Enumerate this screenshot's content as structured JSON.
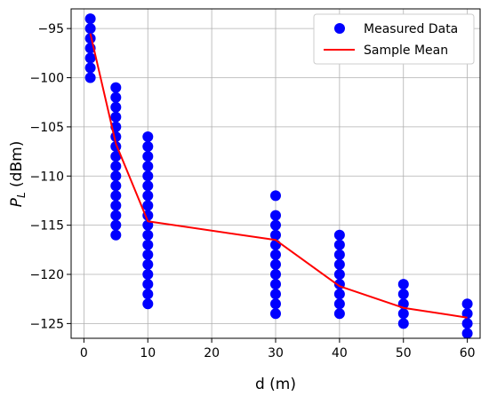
{
  "chart_data": {
    "type": "scatter",
    "title": "",
    "xlabel": "d (m)",
    "ylabel": {
      "base": "P",
      "sub": "L",
      "rest": " (dBm)"
    },
    "xlim": [
      -2,
      62
    ],
    "ylim": [
      -126.5,
      -93
    ],
    "xticks": [
      0,
      10,
      20,
      30,
      40,
      50,
      60
    ],
    "yticks": [
      -95,
      -100,
      -105,
      -110,
      -115,
      -120,
      -125
    ],
    "grid": true,
    "legend_position": "top-right",
    "series": [
      {
        "name": "Measured Data",
        "kind": "markers",
        "color": "#0000ff",
        "points": [
          [
            1,
            -94
          ],
          [
            1,
            -95
          ],
          [
            1,
            -96
          ],
          [
            1,
            -97
          ],
          [
            1,
            -98
          ],
          [
            1,
            -99
          ],
          [
            1,
            -100
          ],
          [
            5,
            -101
          ],
          [
            5,
            -102
          ],
          [
            5,
            -103
          ],
          [
            5,
            -104
          ],
          [
            5,
            -105
          ],
          [
            5,
            -106
          ],
          [
            5,
            -107
          ],
          [
            5,
            -108
          ],
          [
            5,
            -109
          ],
          [
            5,
            -110
          ],
          [
            5,
            -111
          ],
          [
            5,
            -112
          ],
          [
            5,
            -113
          ],
          [
            5,
            -114
          ],
          [
            5,
            -115
          ],
          [
            5,
            -116
          ],
          [
            10,
            -106
          ],
          [
            10,
            -107
          ],
          [
            10,
            -108
          ],
          [
            10,
            -109
          ],
          [
            10,
            -110
          ],
          [
            10,
            -111
          ],
          [
            10,
            -112
          ],
          [
            10,
            -113
          ],
          [
            10,
            -114
          ],
          [
            10,
            -115
          ],
          [
            10,
            -116
          ],
          [
            10,
            -117
          ],
          [
            10,
            -118
          ],
          [
            10,
            -119
          ],
          [
            10,
            -120
          ],
          [
            10,
            -121
          ],
          [
            10,
            -122
          ],
          [
            10,
            -123
          ],
          [
            30,
            -112
          ],
          [
            30,
            -114
          ],
          [
            30,
            -115
          ],
          [
            30,
            -116
          ],
          [
            30,
            -117
          ],
          [
            30,
            -118
          ],
          [
            30,
            -119
          ],
          [
            30,
            -120
          ],
          [
            30,
            -121
          ],
          [
            30,
            -122
          ],
          [
            30,
            -123
          ],
          [
            30,
            -124
          ],
          [
            40,
            -116
          ],
          [
            40,
            -117
          ],
          [
            40,
            -118
          ],
          [
            40,
            -119
          ],
          [
            40,
            -120
          ],
          [
            40,
            -121
          ],
          [
            40,
            -122
          ],
          [
            40,
            -123
          ],
          [
            40,
            -124
          ],
          [
            50,
            -121
          ],
          [
            50,
            -122
          ],
          [
            50,
            -123
          ],
          [
            50,
            -124
          ],
          [
            50,
            -125
          ],
          [
            60,
            -123
          ],
          [
            60,
            -124
          ],
          [
            60,
            -125
          ],
          [
            60,
            -126
          ]
        ]
      },
      {
        "name": "Sample Mean",
        "kind": "line",
        "color": "#ff0000",
        "points": [
          [
            1,
            -95.5
          ],
          [
            5,
            -106.7
          ],
          [
            10,
            -114.6
          ],
          [
            30,
            -116.5
          ],
          [
            40,
            -121.2
          ],
          [
            50,
            -123.4
          ],
          [
            60,
            -124.4
          ]
        ]
      }
    ]
  }
}
